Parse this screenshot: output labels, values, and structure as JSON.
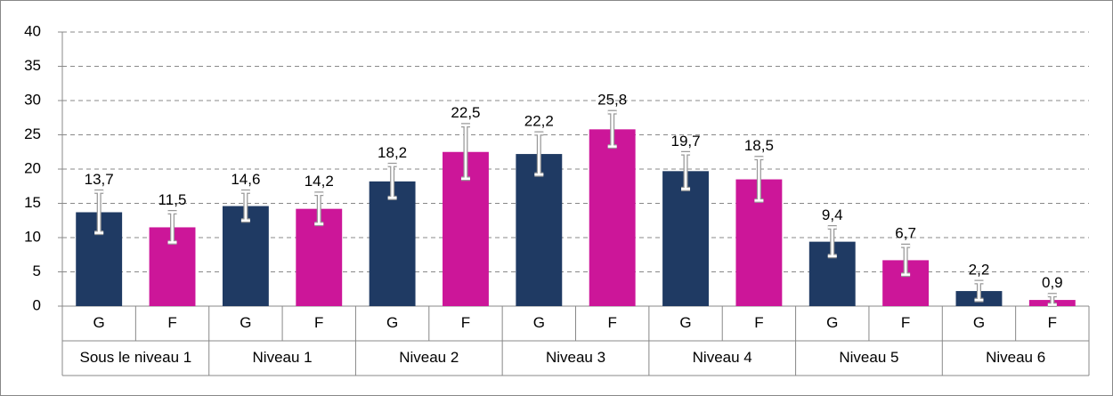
{
  "chart_data": {
    "type": "bar",
    "groups": [
      "Sous le niveau 1",
      "Niveau 1",
      "Niveau 2",
      "Niveau 3",
      "Niveau 4",
      "Niveau 5",
      "Niveau 6"
    ],
    "categories": [
      "G",
      "F",
      "G",
      "F",
      "G",
      "F",
      "G",
      "F",
      "G",
      "F",
      "G",
      "F",
      "G",
      "F"
    ],
    "values": [
      13.7,
      11.5,
      14.6,
      14.2,
      18.2,
      22.5,
      22.2,
      25.8,
      19.7,
      18.5,
      9.4,
      6.7,
      2.2,
      0.9
    ],
    "value_labels": [
      "13,7",
      "11,5",
      "14,6",
      "14,2",
      "18,2",
      "22,5",
      "22,2",
      "25,8",
      "19,7",
      "18,5",
      "9,4",
      "6,7",
      "2,2",
      "0,9"
    ],
    "errors": [
      3.0,
      2.2,
      2.1,
      2.2,
      2.4,
      3.9,
      3.0,
      2.5,
      2.6,
      3.1,
      2.1,
      2.1,
      1.3,
      0.7
    ],
    "colors": [
      "#1f3a63",
      "#cc1699"
    ],
    "ylim": [
      0,
      40
    ],
    "yticks": [
      0,
      5,
      10,
      15,
      20,
      25,
      30,
      35,
      40
    ],
    "grid": true
  }
}
